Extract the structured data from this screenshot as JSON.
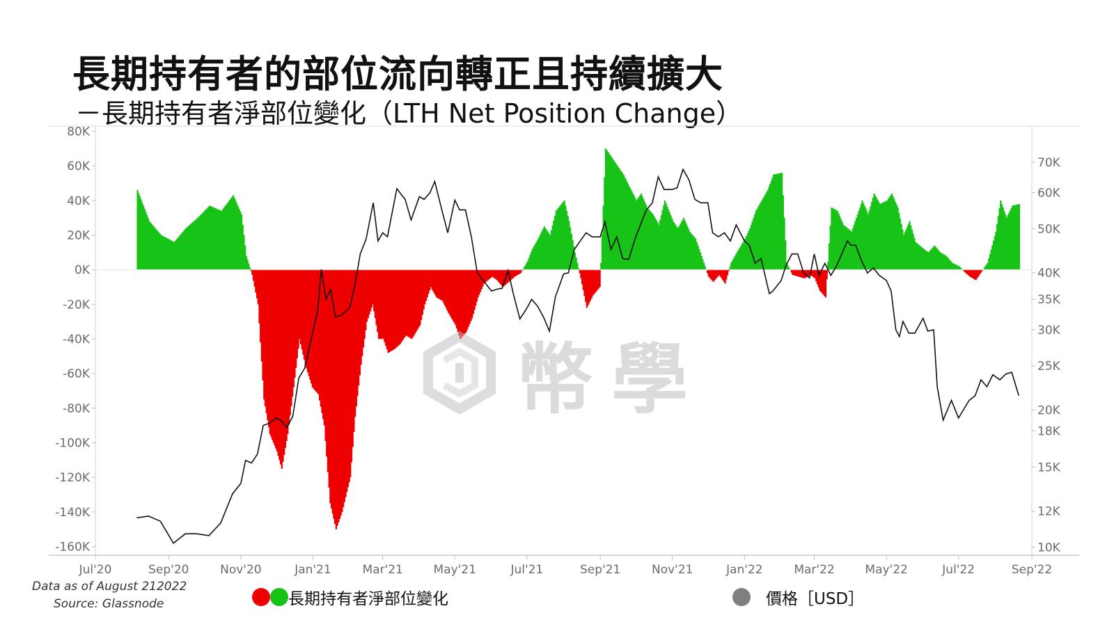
{
  "title": "長期持有者的部位流向轉正且持續擴大",
  "subtitle": "－長期持有者淨部位變化（LTH Net Position Change）",
  "footnote": {
    "date": "Data as of August 212022",
    "source": "Source: Glassnode"
  },
  "watermark": {
    "text": "幣學",
    "icon": "hexagon-logo-icon"
  },
  "legend": {
    "net_position": "長期持有者淨部位變化",
    "price": "價格［USD］"
  },
  "colors": {
    "positive": "#17c317",
    "negative": "#ee0000",
    "price_line": "#111111",
    "price_dot": "#7f7f7f"
  },
  "chart_data": {
    "type": "area",
    "x_ticks": [
      "Jul'20",
      "Sep'20",
      "Nov'20",
      "Jan'21",
      "Mar'21",
      "May'21",
      "Jul'21",
      "Sep'21",
      "Nov'21",
      "Jan'22",
      "Mar'22",
      "May'22",
      "Jul'22",
      "Sep'22"
    ],
    "x_range": [
      "2020-07-01",
      "2022-09-01"
    ],
    "y_left": {
      "ticks": [
        "80K",
        "60K",
        "40K",
        "20K",
        "0K",
        "-20K",
        "-40K",
        "-60K",
        "-80K",
        "-100K",
        "-120K",
        "-140K",
        "-160K"
      ],
      "range": [
        -165000,
        83000
      ]
    },
    "y_right": {
      "scale": "log",
      "ticks": [
        "70K",
        "60K",
        "50K",
        "40K",
        "35K",
        "30K",
        "25K",
        "20K",
        "18K",
        "15K",
        "12K",
        "10K"
      ],
      "range": [
        9600,
        84000
      ]
    },
    "series": [
      {
        "name": "長期持有者淨部位變化",
        "x": [
          "2020-08-05",
          "2020-08-15",
          "2020-08-25",
          "2020-09-05",
          "2020-09-15",
          "2020-09-25",
          "2020-10-05",
          "2020-10-15",
          "2020-10-25",
          "2020-11-01",
          "2020-11-05",
          "2020-11-10",
          "2020-11-15",
          "2020-11-20",
          "2020-11-25",
          "2020-12-01",
          "2020-12-05",
          "2020-12-10",
          "2020-12-15",
          "2020-12-20",
          "2020-12-25",
          "2020-12-31",
          "2021-01-05",
          "2021-01-10",
          "2021-01-15",
          "2021-01-20",
          "2021-01-25",
          "2021-02-01",
          "2021-02-05",
          "2021-02-10",
          "2021-02-15",
          "2021-02-20",
          "2021-02-25",
          "2021-03-01",
          "2021-03-05",
          "2021-03-10",
          "2021-03-15",
          "2021-03-20",
          "2021-03-25",
          "2021-04-01",
          "2021-04-05",
          "2021-04-10",
          "2021-04-15",
          "2021-04-20",
          "2021-04-25",
          "2021-05-01",
          "2021-05-05",
          "2021-05-10",
          "2021-05-15",
          "2021-05-20",
          "2021-05-25",
          "2021-06-01",
          "2021-06-05",
          "2021-06-10",
          "2021-06-15",
          "2021-06-20",
          "2021-06-25",
          "2021-07-01",
          "2021-07-05",
          "2021-07-10",
          "2021-07-15",
          "2021-07-20",
          "2021-07-25",
          "2021-08-01",
          "2021-08-05",
          "2021-08-10",
          "2021-08-15",
          "2021-08-20",
          "2021-08-25",
          "2021-08-31",
          "2021-09-01",
          "2021-09-05",
          "2021-09-10",
          "2021-09-15",
          "2021-09-20",
          "2021-09-25",
          "2021-10-01",
          "2021-10-05",
          "2021-10-10",
          "2021-10-15",
          "2021-10-20",
          "2021-10-25",
          "2021-11-01",
          "2021-11-05",
          "2021-11-10",
          "2021-11-15",
          "2021-11-20",
          "2021-11-25",
          "2021-12-01",
          "2021-12-05",
          "2021-12-10",
          "2021-12-15",
          "2021-12-20",
          "2021-12-25",
          "2022-01-01",
          "2022-01-05",
          "2022-01-10",
          "2022-01-15",
          "2022-01-20",
          "2022-01-25",
          "2022-02-01",
          "2022-02-05",
          "2022-02-10",
          "2022-02-15",
          "2022-02-20",
          "2022-02-25",
          "2022-03-01",
          "2022-03-05",
          "2022-03-10",
          "2022-03-15",
          "2022-03-20",
          "2022-03-25",
          "2022-04-01",
          "2022-04-05",
          "2022-04-10",
          "2022-04-15",
          "2022-04-20",
          "2022-04-25",
          "2022-05-01",
          "2022-05-05",
          "2022-05-10",
          "2022-05-15",
          "2022-05-20",
          "2022-05-25",
          "2022-06-01",
          "2022-06-05",
          "2022-06-10",
          "2022-06-15",
          "2022-06-20",
          "2022-06-25",
          "2022-07-01",
          "2022-07-05",
          "2022-07-10",
          "2022-07-15",
          "2022-07-20",
          "2022-07-25",
          "2022-08-01",
          "2022-08-05",
          "2022-08-10",
          "2022-08-15",
          "2022-08-21"
        ],
        "values": [
          46000,
          28000,
          20000,
          16000,
          24000,
          30000,
          37000,
          34000,
          43000,
          32000,
          8000,
          -3000,
          -20000,
          -75000,
          -95000,
          -105000,
          -115000,
          -95000,
          -68000,
          -40000,
          -55000,
          -68000,
          -72000,
          -90000,
          -135000,
          -150000,
          -140000,
          -120000,
          -85000,
          -55000,
          -30000,
          -20000,
          -40000,
          -40000,
          -48000,
          -46000,
          -43000,
          -38000,
          -40000,
          -32000,
          -20000,
          -10000,
          -16000,
          -18000,
          -25000,
          -32000,
          -40000,
          -36000,
          -28000,
          -16000,
          -8000,
          -4000,
          -6000,
          -10000,
          -7000,
          -4000,
          -2000,
          5000,
          12000,
          18000,
          25000,
          20000,
          34000,
          40000,
          28000,
          10000,
          -5000,
          -22000,
          -15000,
          -10000,
          4000,
          70000,
          65000,
          60000,
          55000,
          48000,
          40000,
          44000,
          36000,
          32000,
          26000,
          40000,
          28000,
          24000,
          30000,
          22000,
          18000,
          8000,
          -4000,
          -7000,
          -3000,
          -8000,
          4000,
          10000,
          18000,
          24000,
          34000,
          40000,
          46000,
          55000,
          56000,
          4000,
          -3000,
          -4000,
          -5000,
          -3000,
          -5000,
          -12000,
          -16000,
          36000,
          34000,
          26000,
          22000,
          30000,
          40000,
          32000,
          44000,
          38000,
          40000,
          44000,
          36000,
          20000,
          28000,
          16000,
          12000,
          10000,
          14000,
          10000,
          8000,
          4000,
          2000,
          -1000,
          -4000,
          -6000,
          -1000,
          4000,
          22000,
          40000,
          30000,
          37000,
          38000
        ]
      },
      {
        "name": "價格［USD］",
        "x": [
          "2020-08-05",
          "2020-08-15",
          "2020-08-25",
          "2020-09-05",
          "2020-09-15",
          "2020-09-25",
          "2020-10-05",
          "2020-10-15",
          "2020-10-25",
          "2020-11-01",
          "2020-11-05",
          "2020-11-10",
          "2020-11-15",
          "2020-11-20",
          "2020-11-25",
          "2020-12-01",
          "2020-12-05",
          "2020-12-10",
          "2020-12-15",
          "2020-12-20",
          "2020-12-25",
          "2020-12-31",
          "2021-01-05",
          "2021-01-08",
          "2021-01-12",
          "2021-01-16",
          "2021-01-20",
          "2021-01-25",
          "2021-02-01",
          "2021-02-05",
          "2021-02-10",
          "2021-02-15",
          "2021-02-21",
          "2021-02-25",
          "2021-03-01",
          "2021-03-05",
          "2021-03-10",
          "2021-03-13",
          "2021-03-20",
          "2021-03-25",
          "2021-04-01",
          "2021-04-05",
          "2021-04-10",
          "2021-04-14",
          "2021-04-20",
          "2021-04-25",
          "2021-05-01",
          "2021-05-05",
          "2021-05-10",
          "2021-05-15",
          "2021-05-20",
          "2021-05-25",
          "2021-06-01",
          "2021-06-05",
          "2021-06-10",
          "2021-06-15",
          "2021-06-20",
          "2021-06-25",
          "2021-07-01",
          "2021-07-05",
          "2021-07-10",
          "2021-07-15",
          "2021-07-20",
          "2021-07-25",
          "2021-08-01",
          "2021-08-05",
          "2021-08-10",
          "2021-08-15",
          "2021-08-20",
          "2021-08-25",
          "2021-09-01",
          "2021-09-05",
          "2021-09-10",
          "2021-09-15",
          "2021-09-20",
          "2021-09-25",
          "2021-10-01",
          "2021-10-05",
          "2021-10-10",
          "2021-10-15",
          "2021-10-20",
          "2021-10-25",
          "2021-11-01",
          "2021-11-05",
          "2021-11-10",
          "2021-11-15",
          "2021-11-20",
          "2021-11-25",
          "2021-12-01",
          "2021-12-05",
          "2021-12-10",
          "2021-12-15",
          "2021-12-20",
          "2021-12-25",
          "2022-01-01",
          "2022-01-05",
          "2022-01-10",
          "2022-01-15",
          "2022-01-22",
          "2022-01-25",
          "2022-02-01",
          "2022-02-05",
          "2022-02-10",
          "2022-02-15",
          "2022-02-20",
          "2022-02-25",
          "2022-03-01",
          "2022-03-05",
          "2022-03-10",
          "2022-03-15",
          "2022-03-20",
          "2022-03-25",
          "2022-03-29",
          "2022-04-01",
          "2022-04-05",
          "2022-04-10",
          "2022-04-15",
          "2022-04-20",
          "2022-04-25",
          "2022-05-01",
          "2022-05-05",
          "2022-05-09",
          "2022-05-12",
          "2022-05-15",
          "2022-05-20",
          "2022-05-25",
          "2022-06-01",
          "2022-06-05",
          "2022-06-10",
          "2022-06-13",
          "2022-06-18",
          "2022-06-25",
          "2022-07-01",
          "2022-07-05",
          "2022-07-10",
          "2022-07-15",
          "2022-07-20",
          "2022-07-25",
          "2022-07-30",
          "2022-08-05",
          "2022-08-10",
          "2022-08-15",
          "2022-08-21"
        ],
        "values": [
          11600,
          11700,
          11400,
          10200,
          10700,
          10700,
          10600,
          11300,
          13100,
          13800,
          15500,
          15300,
          16000,
          18500,
          18700,
          19200,
          19000,
          18300,
          19400,
          23500,
          24700,
          29000,
          33000,
          40700,
          35000,
          36800,
          32000,
          32300,
          33500,
          37000,
          44000,
          47500,
          57000,
          47000,
          49000,
          48000,
          56000,
          61200,
          58000,
          52300,
          58800,
          58000,
          60000,
          63500,
          55000,
          49000,
          57800,
          55000,
          55000,
          48000,
          40000,
          38500,
          36500,
          36800,
          37000,
          40500,
          35500,
          31700,
          33500,
          35000,
          33800,
          32000,
          29800,
          35400,
          39800,
          40000,
          45000,
          47000,
          49000,
          48000,
          48000,
          51800,
          45000,
          48000,
          43000,
          42800,
          48000,
          51000,
          55000,
          57000,
          65000,
          61000,
          61000,
          61500,
          67500,
          64000,
          58000,
          57000,
          57000,
          49000,
          48000,
          49000,
          47000,
          51000,
          47000,
          46000,
          42000,
          43000,
          36000,
          36500,
          38500,
          41500,
          44000,
          44000,
          40000,
          39000,
          44000,
          39500,
          42000,
          39500,
          41500,
          44500,
          47000,
          46000,
          46000,
          42500,
          40000,
          41000,
          39500,
          38500,
          36500,
          30000,
          29000,
          31300,
          29500,
          29500,
          31800,
          29800,
          30000,
          22500,
          19000,
          21000,
          19200,
          20000,
          21000,
          21500,
          23300,
          22500,
          23900,
          23300,
          24000,
          24200,
          21500
        ]
      }
    ]
  }
}
